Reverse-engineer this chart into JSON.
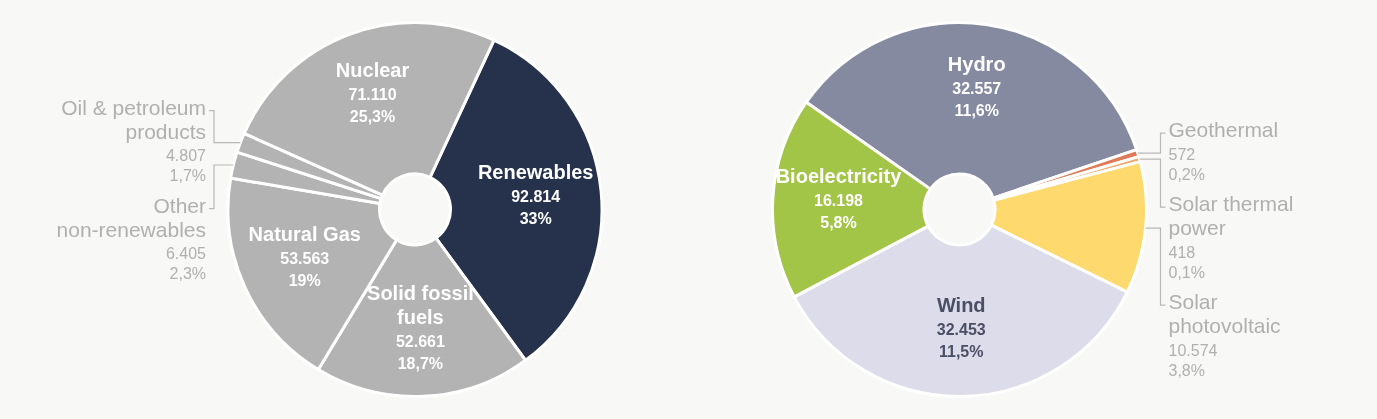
{
  "chart_data": [
    {
      "type": "donut",
      "categories": [
        "Renewables",
        "Solid fossil fuels",
        "Natural Gas",
        "Other non-renewables",
        "Oil & petroleum products",
        "Nuclear"
      ],
      "values": [
        92814,
        52661,
        53563,
        6405,
        4807,
        71110
      ],
      "value_labels": [
        "92.814\n33%",
        "52.661\n18,7%",
        "53.563\n19%",
        "6.405\n2,3%",
        "4.807\n1,7%",
        "71.110\n25,3%"
      ],
      "colors": [
        "#26314b",
        "#b3b3b3",
        "#b3b3b3",
        "#b3b3b3",
        "#b3b3b3",
        "#b3b3b3"
      ]
    },
    {
      "type": "donut",
      "categories": [
        "Hydro",
        "Geothermal",
        "Solar thermal power",
        "Solar photovoltaic",
        "Wind",
        "Bioelectricity"
      ],
      "values": [
        32557,
        572,
        418,
        10574,
        32453,
        16198
      ],
      "value_labels": [
        "32.557\n11,6%",
        "572\n0,2%",
        "418\n0,1%",
        "10.574\n3,8%",
        "32.453\n11,5%",
        "16.198\n5,8%"
      ],
      "colors": [
        "#868aa0",
        "#e07b5a",
        "#f0a96b",
        "#fdd96e",
        "#dcdcea",
        "#a2c548"
      ]
    }
  ]
}
